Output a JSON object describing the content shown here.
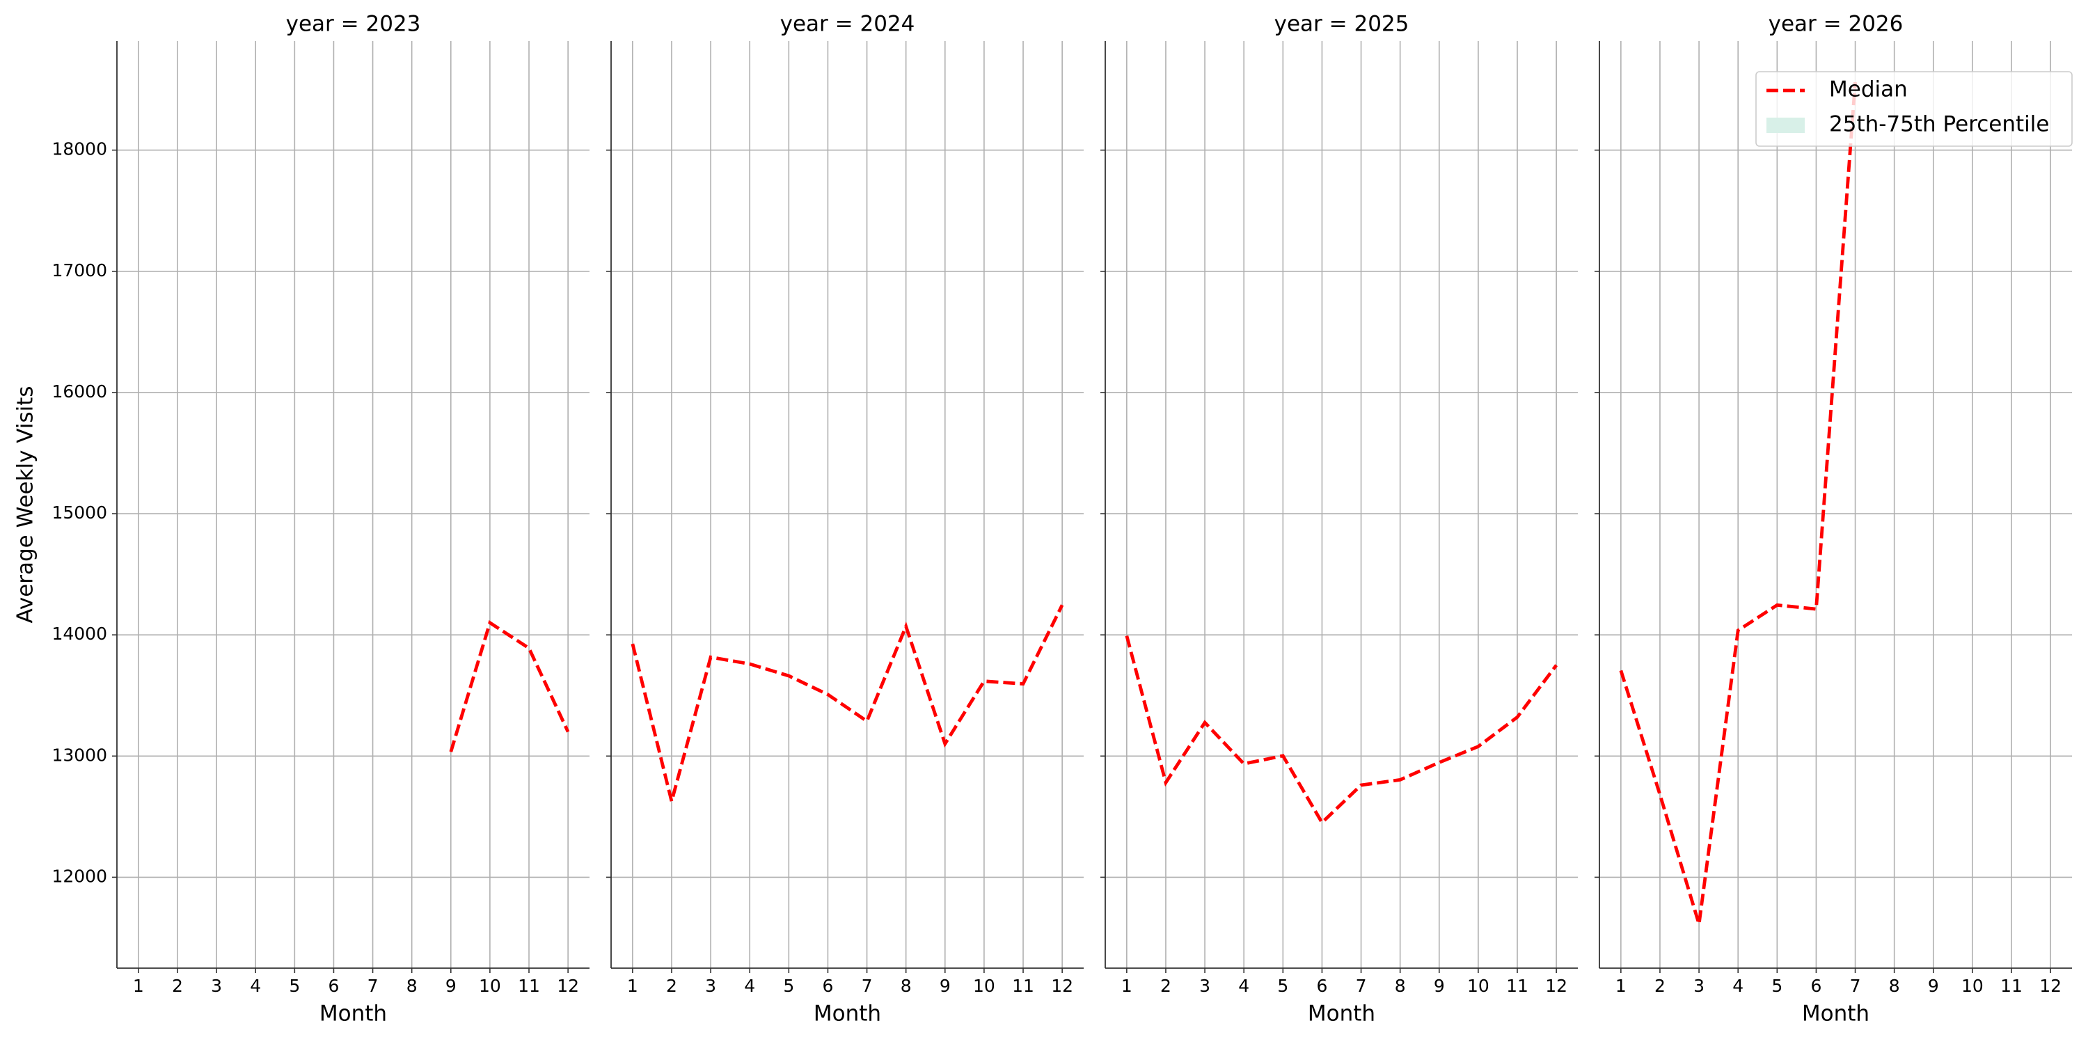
{
  "chart_data": [
    {
      "type": "line",
      "title": "year = 2023",
      "xlabel": "Month",
      "ylabel": "Average Weekly Visits",
      "x": [
        1,
        2,
        3,
        4,
        5,
        6,
        7,
        8,
        9,
        10,
        11,
        12
      ],
      "series": [
        {
          "name": "Median",
          "color": "#ff0000",
          "values": [
            null,
            null,
            null,
            null,
            null,
            null,
            null,
            null,
            13035,
            14100,
            13890,
            13200
          ]
        }
      ],
      "xlim": [
        0.45,
        12.55
      ],
      "xticks": [
        1,
        2,
        3,
        4,
        5,
        6,
        7,
        8,
        9,
        10,
        11,
        12
      ],
      "ylim": [
        11250,
        18900
      ],
      "yticks": [
        12000,
        13000,
        14000,
        15000,
        16000,
        17000,
        18000
      ],
      "grid": true
    },
    {
      "type": "line",
      "title": "year = 2024",
      "xlabel": "Month",
      "x": [
        1,
        2,
        3,
        4,
        5,
        6,
        7,
        8,
        9,
        10,
        11,
        12
      ],
      "series": [
        {
          "name": "Median",
          "color": "#ff0000",
          "values": [
            13926,
            12627,
            13816,
            13760,
            13662,
            13508,
            13288,
            14070,
            13101,
            13618,
            13596,
            14246
          ]
        }
      ],
      "xlim": [
        0.45,
        12.55
      ],
      "xticks": [
        1,
        2,
        3,
        4,
        5,
        6,
        7,
        8,
        9,
        10,
        11,
        12
      ],
      "ylim": [
        11250,
        18900
      ],
      "yticks": [
        12000,
        13000,
        14000,
        15000,
        16000,
        17000,
        18000
      ],
      "grid": true
    },
    {
      "type": "line",
      "title": "year = 2025",
      "xlabel": "Month",
      "x": [
        1,
        2,
        3,
        4,
        5,
        6,
        7,
        8,
        9,
        10,
        11,
        12
      ],
      "series": [
        {
          "name": "Median",
          "color": "#ff0000",
          "values": [
            13992,
            12781,
            13277,
            12936,
            13002,
            12451,
            12760,
            12804,
            12947,
            13079,
            13321,
            13750
          ]
        }
      ],
      "xlim": [
        0.45,
        12.55
      ],
      "xticks": [
        1,
        2,
        3,
        4,
        5,
        6,
        7,
        8,
        9,
        10,
        11,
        12
      ],
      "ylim": [
        11250,
        18900
      ],
      "yticks": [
        12000,
        13000,
        14000,
        15000,
        16000,
        17000,
        18000
      ],
      "grid": true
    },
    {
      "type": "line",
      "title": "year = 2026",
      "xlabel": "Month",
      "x": [
        1,
        2,
        3,
        4,
        5,
        6,
        7,
        8,
        9,
        10,
        11,
        12
      ],
      "series": [
        {
          "name": "Median",
          "color": "#ff0000",
          "values": [
            13706,
            12682,
            11614,
            14037,
            14246,
            14213,
            18561,
            null,
            null,
            null,
            null,
            null
          ]
        },
        {
          "name": "25th-75th Percentile",
          "color": "#d8f0e8",
          "values": [
            null,
            null,
            null,
            null,
            null,
            null,
            null,
            null,
            null,
            null,
            null,
            null
          ]
        }
      ],
      "xlim": [
        0.45,
        12.55
      ],
      "xticks": [
        1,
        2,
        3,
        4,
        5,
        6,
        7,
        8,
        9,
        10,
        11,
        12
      ],
      "ylim": [
        11250,
        18900
      ],
      "yticks": [
        12000,
        13000,
        14000,
        15000,
        16000,
        17000,
        18000
      ],
      "grid": true,
      "legend": "upper right"
    }
  ]
}
